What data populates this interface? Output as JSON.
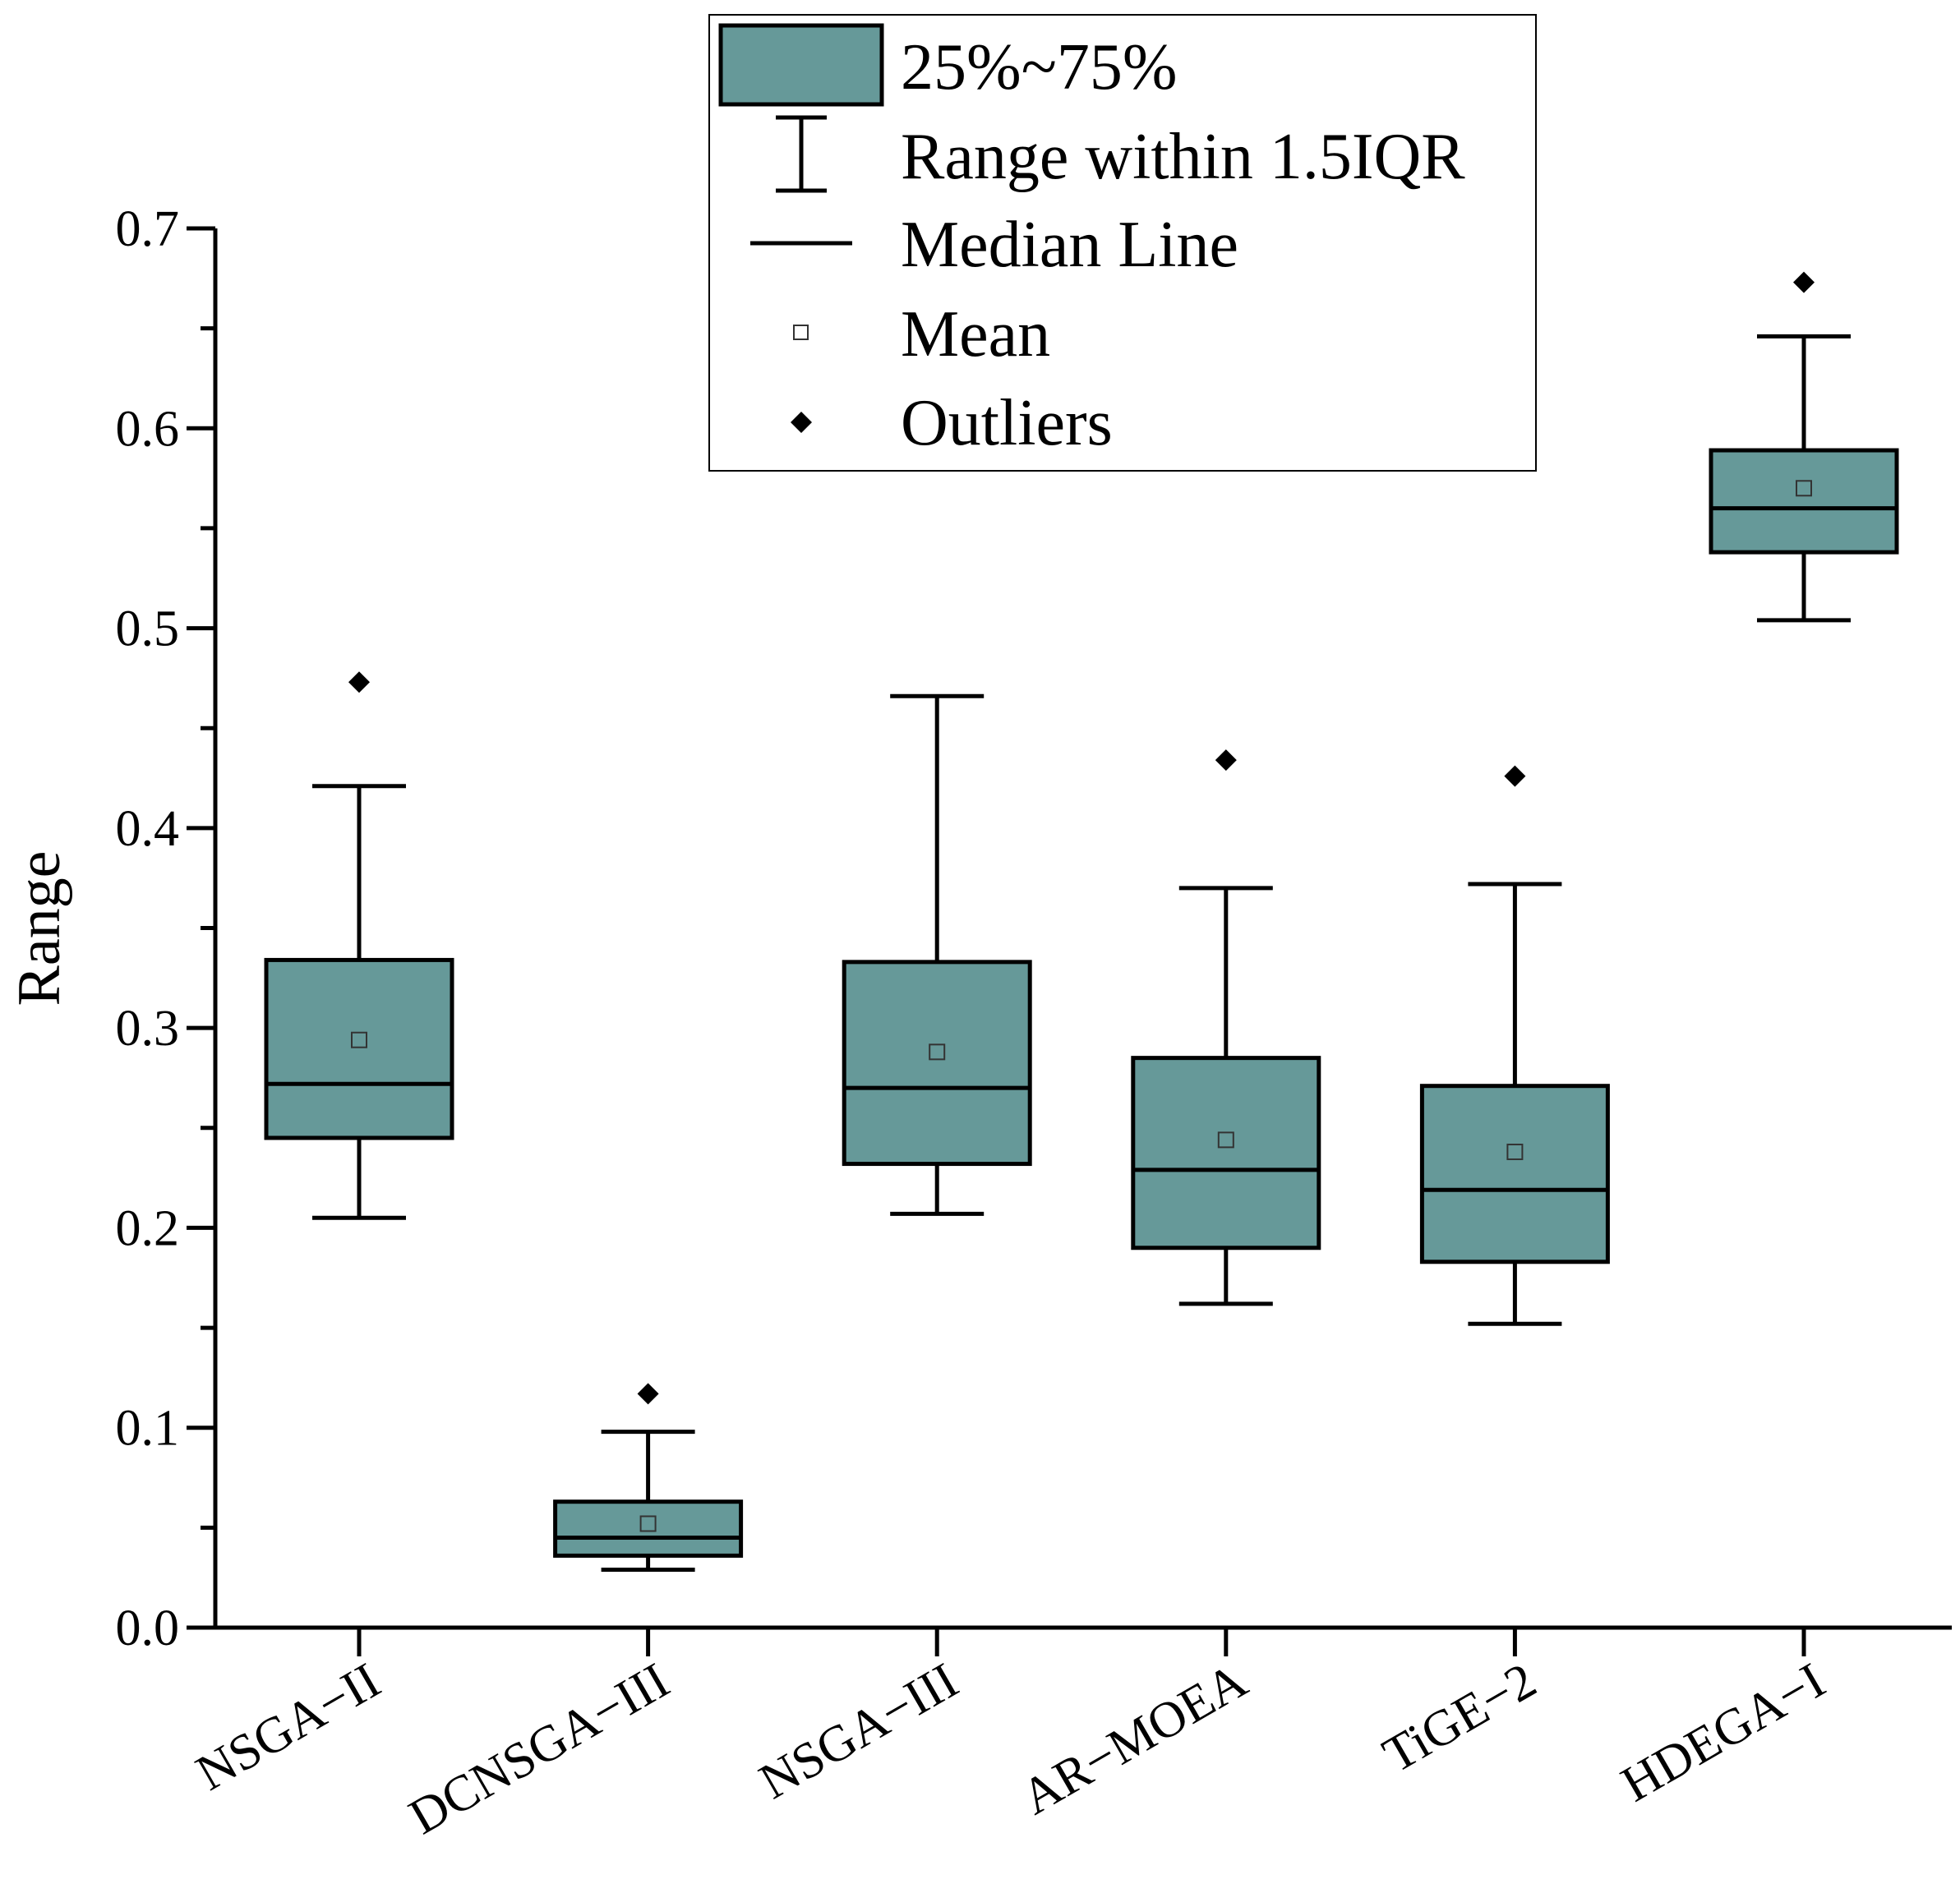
{
  "chart_data": {
    "type": "box",
    "title": "",
    "xlabel": "",
    "ylabel": "Range",
    "ylim": [
      0.0,
      0.7
    ],
    "yticks": [
      "0.0",
      "0.1",
      "0.2",
      "0.3",
      "0.4",
      "0.5",
      "0.6",
      "0.7"
    ],
    "grid": false,
    "legend_position": "top-center",
    "legend": {
      "box": "25%~75%",
      "whisker": "Range within 1.5IQR",
      "median": "Median Line",
      "mean": "Mean",
      "outliers": "Outliers"
    },
    "box_color": "#669999",
    "categories": [
      "NSGA−II",
      "DCNSGA−III",
      "NSGA−III",
      "AR−MOEA",
      "TiGE−2",
      "HDEGA−I"
    ],
    "series": [
      {
        "name": "NSGA−II",
        "whisker_low": 0.205,
        "q1": 0.245,
        "median": 0.272,
        "q3": 0.334,
        "whisker_high": 0.421,
        "mean": 0.294,
        "outliers": [
          0.473
        ]
      },
      {
        "name": "DCNSGA−III",
        "whisker_low": 0.029,
        "q1": 0.036,
        "median": 0.045,
        "q3": 0.063,
        "whisker_high": 0.098,
        "mean": 0.052,
        "outliers": [
          0.117
        ]
      },
      {
        "name": "NSGA−III",
        "whisker_low": 0.207,
        "q1": 0.232,
        "median": 0.27,
        "q3": 0.333,
        "whisker_high": 0.466,
        "mean": 0.288,
        "outliers": []
      },
      {
        "name": "AR−MOEA",
        "whisker_low": 0.162,
        "q1": 0.19,
        "median": 0.229,
        "q3": 0.285,
        "whisker_high": 0.37,
        "mean": 0.244,
        "outliers": [
          0.434
        ]
      },
      {
        "name": "TiGE−2",
        "whisker_low": 0.152,
        "q1": 0.183,
        "median": 0.219,
        "q3": 0.271,
        "whisker_high": 0.372,
        "mean": 0.238,
        "outliers": [
          0.426
        ]
      },
      {
        "name": "HDEGA−I",
        "whisker_low": 0.504,
        "q1": 0.538,
        "median": 0.56,
        "q3": 0.589,
        "whisker_high": 0.646,
        "mean": 0.57,
        "outliers": [
          0.673
        ]
      }
    ]
  }
}
